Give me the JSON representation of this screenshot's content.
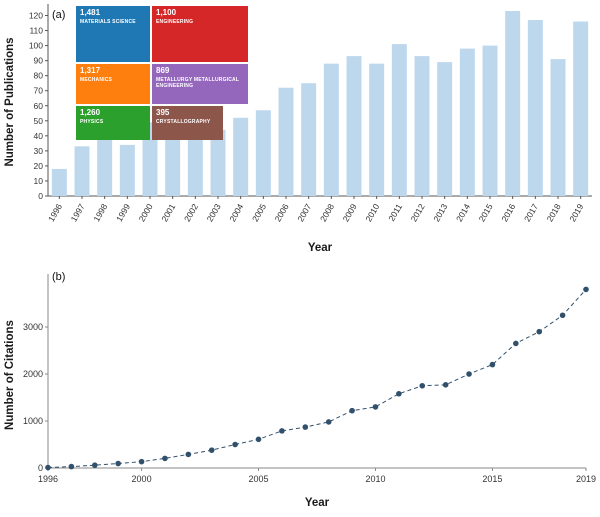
{
  "page": {
    "background": "#ffffff"
  },
  "panel_a": {
    "label": "(a)",
    "ylabel": "Number of Publications",
    "xlabel": "Year",
    "bar_color": "#bdd7ec",
    "axis_color": "#555555",
    "treemap_items": [
      {
        "value": "1,481",
        "label": "MATERIALS SCIENCE",
        "color": "#1f77b4"
      },
      {
        "value": "1,100",
        "label": "ENGINEERING",
        "color": "#d62728"
      },
      {
        "value": "1,317",
        "label": "MECHANICS",
        "color": "#ff7f0e"
      },
      {
        "value": "869",
        "label": "METALLURGY METALLURGICAL ENGINEERING",
        "color": "#9467bd"
      },
      {
        "value": "1,260",
        "label": "PHYSICS",
        "color": "#2ca02c"
      },
      {
        "value": "395",
        "label": "CRYSTALLOGRAPHY",
        "color": "#8c564b"
      }
    ]
  },
  "panel_b": {
    "label": "(b)",
    "ylabel": "Number of Citations",
    "xlabel": "Year",
    "line_color": "#31506b",
    "axis_color": "#8a8a8a"
  },
  "chart_data": [
    {
      "type": "bar",
      "title": "Number of Publications per Year",
      "xlabel": "Year",
      "ylabel": "Number of Publications",
      "categories": [
        "1996",
        "1997",
        "1998",
        "1999",
        "2000",
        "2001",
        "2002",
        "2003",
        "2004",
        "2005",
        "2006",
        "2007",
        "2008",
        "2009",
        "2010",
        "2011",
        "2012",
        "2013",
        "2014",
        "2015",
        "2016",
        "2017",
        "2018",
        "2019"
      ],
      "values": [
        18,
        33,
        40,
        34,
        49,
        46,
        43,
        44,
        52,
        57,
        72,
        75,
        88,
        93,
        88,
        101,
        93,
        89,
        98,
        100,
        123,
        117,
        91,
        116
      ],
      "ylim": [
        0,
        125
      ],
      "ytick_step": 10,
      "ytick_max": 120,
      "bar_color": "#bdd7ec",
      "grid": false,
      "legend": "none"
    },
    {
      "type": "line",
      "title": "Number of Citations per Year",
      "xlabel": "Year",
      "ylabel": "Number of Citations",
      "x": [
        1996,
        1997,
        1998,
        1999,
        2000,
        2001,
        2002,
        2003,
        2004,
        2005,
        2006,
        2007,
        2008,
        2009,
        2010,
        2011,
        2012,
        2013,
        2014,
        2015,
        2016,
        2017,
        2018,
        2019
      ],
      "values": [
        10,
        30,
        60,
        95,
        135,
        205,
        290,
        380,
        500,
        610,
        790,
        870,
        980,
        1220,
        1300,
        1580,
        1750,
        1770,
        2000,
        2200,
        2650,
        2900,
        3250,
        3800
      ],
      "ylim": [
        0,
        4000
      ],
      "yticks": [
        0,
        1000,
        2000,
        3000
      ],
      "xticks": [
        1996,
        2000,
        2005,
        2010,
        2015,
        2019
      ],
      "marker": "circle",
      "line_style": "dashed",
      "color": "#31506b",
      "grid": false,
      "legend": "none"
    },
    {
      "type": "treemap",
      "title": "Publications by Subject Category",
      "categories": [
        "MATERIALS SCIENCE",
        "ENGINEERING",
        "MECHANICS",
        "METALLURGY METALLURGICAL ENGINEERING",
        "PHYSICS",
        "CRYSTALLOGRAPHY"
      ],
      "values": [
        1481,
        1100,
        1317,
        869,
        1260,
        395
      ]
    }
  ]
}
